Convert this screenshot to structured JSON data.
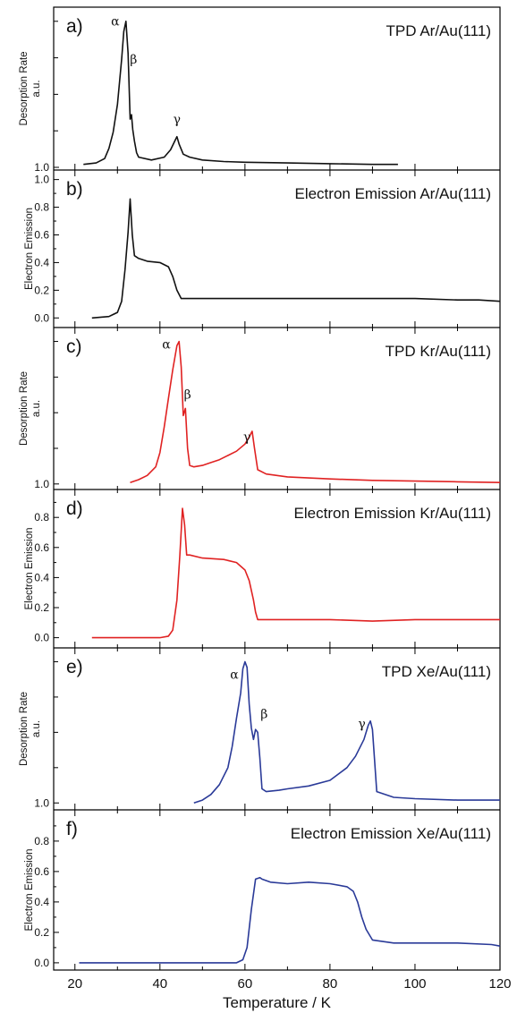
{
  "chart_data": {
    "type": "line",
    "x_axis": {
      "label": "Temperature / K",
      "range": [
        15,
        120
      ],
      "tick_labels": [
        "20",
        "40",
        "60",
        "80",
        "100",
        "120"
      ]
    },
    "panels": [
      {
        "letter": "a)",
        "title": "TPD Ar/Au(111)",
        "ylabel_lines": [
          "Desorption Rate",
          "a.u."
        ],
        "y_tick_labels": [
          {
            "value": 0.0,
            "label": "1.0"
          }
        ],
        "ylim": [
          0,
          1.06
        ],
        "color": "#111111",
        "x_end": 96,
        "peak_labels": [
          {
            "symbol": "α",
            "x": 29.5,
            "y": 0.97
          },
          {
            "symbol": "β",
            "x": 33.8,
            "y": 0.71
          },
          {
            "symbol": "γ",
            "x": 44,
            "y": 0.3
          }
        ],
        "series": [
          {
            "x": [
              22,
              25,
              27,
              28,
              29,
              30,
              31,
              31.5,
              32,
              32.5,
              33,
              33.3,
              33.6,
              34,
              34.5,
              35,
              38,
              41,
              42.5,
              43.5,
              44,
              44.5,
              45.5,
              47,
              50,
              55,
              60,
              70,
              80,
              90,
              96
            ],
            "y": [
              0.02,
              0.03,
              0.06,
              0.13,
              0.24,
              0.43,
              0.74,
              0.93,
              1.0,
              0.78,
              0.33,
              0.36,
              0.26,
              0.18,
              0.1,
              0.07,
              0.05,
              0.07,
              0.12,
              0.18,
              0.21,
              0.16,
              0.09,
              0.07,
              0.05,
              0.04,
              0.035,
              0.03,
              0.025,
              0.02,
              0.02
            ]
          }
        ]
      },
      {
        "letter": "b)",
        "title": "Electron Emission Ar/Au(111)",
        "ylabel_lines": [
          "Electron Emission"
        ],
        "y_tick_labels": [
          {
            "value": 0.0,
            "label": "0.0"
          },
          {
            "value": 0.2,
            "label": "0.2"
          },
          {
            "value": 0.4,
            "label": "0.4"
          },
          {
            "value": 0.6,
            "label": "0.6"
          },
          {
            "value": 0.8,
            "label": "0.8"
          },
          {
            "value": 1.0,
            "label": "1.0"
          }
        ],
        "ylim": [
          -0.05,
          1.03
        ],
        "color": "#111111",
        "x_end": 120,
        "peak_labels": [],
        "series": [
          {
            "x": [
              24,
              28,
              30,
              31,
              31.8,
              32.5,
              33,
              33.5,
              34,
              35,
              37,
              40,
              42,
              43,
              44,
              45,
              50,
              60,
              70,
              80,
              90,
              100,
              110,
              115,
              120
            ],
            "y": [
              0.0,
              0.01,
              0.04,
              0.12,
              0.35,
              0.62,
              0.86,
              0.6,
              0.45,
              0.43,
              0.41,
              0.4,
              0.37,
              0.3,
              0.2,
              0.14,
              0.14,
              0.14,
              0.14,
              0.14,
              0.14,
              0.14,
              0.13,
              0.13,
              0.12
            ]
          }
        ]
      },
      {
        "letter": "c)",
        "title": "TPD Kr/Au(111)",
        "ylabel_lines": [
          "Desorption Rate",
          "a.u."
        ],
        "y_tick_labels": [
          {
            "value": 0.0,
            "label": "1.0"
          }
        ],
        "ylim": [
          -0.02,
          1.06
        ],
        "color": "#e02222",
        "x_end": 120,
        "peak_labels": [
          {
            "symbol": "α",
            "x": 41.5,
            "y": 0.95
          },
          {
            "symbol": "β",
            "x": 46.5,
            "y": 0.6
          },
          {
            "symbol": "γ",
            "x": 60.5,
            "y": 0.3
          }
        ],
        "series": [
          {
            "x": [
              33,
              35,
              37,
              39,
              40,
              41,
              42,
              43,
              44,
              44.5,
              45,
              45.5,
              46,
              46.5,
              47,
              48,
              50,
              52,
              54,
              56,
              58,
              60,
              61,
              61.7,
              62.2,
              63,
              65,
              70,
              80,
              90,
              100,
              110,
              120
            ],
            "y": [
              0.01,
              0.03,
              0.06,
              0.12,
              0.22,
              0.4,
              0.6,
              0.8,
              0.97,
              1.0,
              0.82,
              0.48,
              0.53,
              0.25,
              0.13,
              0.12,
              0.13,
              0.15,
              0.17,
              0.2,
              0.23,
              0.28,
              0.33,
              0.37,
              0.26,
              0.1,
              0.07,
              0.05,
              0.035,
              0.025,
              0.02,
              0.015,
              0.01
            ]
          }
        ]
      },
      {
        "letter": "d)",
        "title": "Electron Emission Kr/Au(111)",
        "ylabel_lines": [
          "Electron Emission"
        ],
        "y_tick_labels": [
          {
            "value": 0.0,
            "label": "0.0"
          },
          {
            "value": 0.2,
            "label": "0.2"
          },
          {
            "value": 0.4,
            "label": "0.4"
          },
          {
            "value": 0.6,
            "label": "0.6"
          },
          {
            "value": 0.8,
            "label": "0.8"
          }
        ],
        "ylim": [
          -0.05,
          0.95
        ],
        "color": "#e02222",
        "x_end": 120,
        "peak_labels": [],
        "series": [
          {
            "x": [
              24,
              30,
              40,
              42,
              43,
              44,
              44.7,
              45.3,
              45.8,
              46.3,
              47,
              50,
              55,
              58,
              60,
              61,
              62,
              62.5,
              63,
              65,
              70,
              80,
              90,
              100,
              110,
              120
            ],
            "y": [
              0.0,
              0.0,
              0.0,
              0.01,
              0.05,
              0.25,
              0.55,
              0.86,
              0.75,
              0.55,
              0.55,
              0.53,
              0.52,
              0.5,
              0.45,
              0.38,
              0.25,
              0.17,
              0.12,
              0.12,
              0.12,
              0.12,
              0.11,
              0.12,
              0.12,
              0.12
            ]
          }
        ]
      },
      {
        "letter": "e)",
        "title": "TPD Xe/Au(111)",
        "ylabel_lines": [
          "Desorption Rate",
          "a.u."
        ],
        "y_tick_labels": [
          {
            "value": 0.0,
            "label": "1.0"
          }
        ],
        "ylim": [
          -0.03,
          1.06
        ],
        "color": "#2a3a98",
        "x_end": 120,
        "peak_labels": [
          {
            "symbol": "α",
            "x": 57.5,
            "y": 0.88
          },
          {
            "symbol": "β",
            "x": 64.5,
            "y": 0.6
          },
          {
            "symbol": "γ",
            "x": 87.5,
            "y": 0.53
          }
        ],
        "series": [
          {
            "x": [
              48,
              50,
              52,
              54,
              56,
              57,
              58,
              59,
              59.5,
              60,
              60.5,
              61,
              61.5,
              62,
              62.5,
              63,
              63.5,
              64,
              65,
              68,
              70,
              75,
              80,
              84,
              86,
              88,
              89,
              89.5,
              90,
              91,
              95,
              100,
              110,
              120
            ],
            "y": [
              0.0,
              0.02,
              0.06,
              0.13,
              0.25,
              0.4,
              0.6,
              0.78,
              0.95,
              1.0,
              0.96,
              0.7,
              0.53,
              0.45,
              0.52,
              0.5,
              0.32,
              0.1,
              0.08,
              0.09,
              0.1,
              0.12,
              0.16,
              0.25,
              0.33,
              0.45,
              0.55,
              0.58,
              0.52,
              0.08,
              0.04,
              0.03,
              0.02,
              0.02
            ]
          }
        ]
      },
      {
        "letter": "f)",
        "title": "Electron Emission Xe/Au(111)",
        "ylabel_lines": [
          "Electron Emission"
        ],
        "y_tick_labels": [
          {
            "value": 0.0,
            "label": "0.0"
          },
          {
            "value": 0.2,
            "label": "0.2"
          },
          {
            "value": 0.4,
            "label": "0.4"
          },
          {
            "value": 0.6,
            "label": "0.6"
          },
          {
            "value": 0.8,
            "label": "0.8"
          }
        ],
        "ylim": [
          -0.03,
          0.97
        ],
        "color": "#2a3a98",
        "x_end": 120,
        "peak_labels": [],
        "series": [
          {
            "x": [
              21,
              30,
              40,
              50,
              55,
              58,
              59.5,
              60.5,
              61.5,
              62.5,
              63.5,
              64,
              66,
              70,
              75,
              80,
              84,
              85.5,
              86.5,
              87.5,
              88.5,
              90,
              95,
              100,
              110,
              118,
              120
            ],
            "y": [
              0.0,
              0.0,
              0.0,
              0.0,
              0.0,
              0.0,
              0.02,
              0.1,
              0.35,
              0.55,
              0.56,
              0.55,
              0.53,
              0.52,
              0.53,
              0.52,
              0.5,
              0.47,
              0.4,
              0.3,
              0.22,
              0.15,
              0.13,
              0.13,
              0.13,
              0.12,
              0.11
            ]
          }
        ]
      }
    ]
  }
}
